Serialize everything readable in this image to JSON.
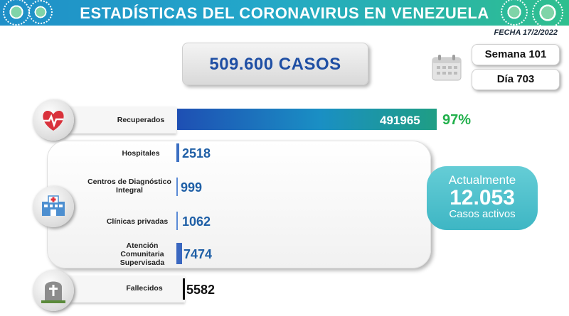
{
  "header": {
    "title": "ESTADÍSTICAS DEL CORONAVIRUS EN VENEZUELA",
    "date": "FECHA 17/2/2022"
  },
  "summary": {
    "total_cases": "509.600 CASOS",
    "week": "Semana 101",
    "day": "Día 703"
  },
  "recovered": {
    "label": "Recuperados",
    "value": "491965",
    "percent": "97%",
    "icon": "heart-pulse-icon"
  },
  "hospital": {
    "icon": "hospital-icon",
    "rows": [
      {
        "label": "Hospitales",
        "value": "2518"
      },
      {
        "label": "Centros de Diagnóstico Integral",
        "value": "999"
      },
      {
        "label": "Clínicas privadas",
        "value": "1062"
      },
      {
        "label": "Atención Comunitaria Supervisada",
        "value": "7474"
      }
    ]
  },
  "active": {
    "top": "Actualmente",
    "number": "12.053",
    "bottom": "Casos activos"
  },
  "deceased": {
    "label": "Fallecidos",
    "value": "5582",
    "icon": "tombstone-icon"
  },
  "colors": {
    "header_start": "#1f8fc8",
    "header_end": "#2fbf8e",
    "cases_text": "#1f4fa4",
    "percent_green": "#21b04b",
    "active_teal": "#3eb6c4",
    "value_blue": "#1f5fa6"
  }
}
